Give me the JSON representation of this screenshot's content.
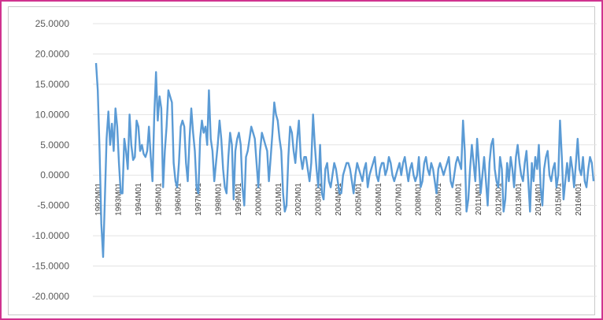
{
  "colors": {
    "frame": "#d0338f",
    "border": "#c9c9c9",
    "line": "#5b9bd5",
    "grid": "#e3e3e3",
    "text": "#595959"
  },
  "chart_data": {
    "type": "line",
    "title": "",
    "xlabel": "",
    "ylabel": "",
    "ylim": [
      -20,
      25
    ],
    "grid": true,
    "y_ticks": [
      "25.0000",
      "20.0000",
      "15.0000",
      "10.0000",
      "5.0000",
      "0.0000",
      "-5.0000",
      "-10.0000",
      "-15.0000",
      "-20.0000"
    ],
    "y_tick_values": [
      25,
      20,
      15,
      10,
      5,
      0,
      -5,
      -10,
      -15,
      -20
    ],
    "x_tick_labels": [
      "1992M01",
      "1993M01",
      "1994M01",
      "1995M01",
      "1996M01",
      "1997M01",
      "1998M01",
      "1999M01",
      "2000M01",
      "2001M01",
      "2002M01",
      "2003M01",
      "2004M01",
      "2005M01",
      "2006M01",
      "2007M01",
      "2008M01",
      "2009M01",
      "2010M01",
      "2011M01",
      "2012M01",
      "2013M01",
      "2014M01",
      "2015M01",
      "2016M01"
    ],
    "series": [
      {
        "values": [
          18.5,
          14,
          4,
          -8,
          -13.5,
          -4,
          6,
          10.5,
          5,
          8.5,
          4,
          11,
          8,
          2,
          -3,
          -3,
          6,
          4,
          1,
          10,
          5,
          2.5,
          3,
          9,
          8,
          4,
          5,
          3.5,
          3,
          4,
          8,
          3,
          -1,
          10,
          17,
          9,
          13,
          11,
          -2,
          4,
          8,
          14,
          13,
          12,
          2,
          -1,
          -2,
          2,
          8,
          9,
          8,
          2,
          -1,
          6,
          11,
          7,
          4,
          -2,
          -3,
          6,
          9,
          7,
          8,
          5,
          14,
          6,
          4,
          -1,
          2,
          5,
          9,
          6,
          1,
          -2,
          -3,
          3,
          7,
          5,
          -4,
          4,
          6,
          7,
          5,
          -2,
          -5,
          3,
          4,
          6,
          8,
          7,
          6,
          2,
          -2,
          4,
          7,
          6,
          5,
          4,
          -1,
          3,
          7,
          12,
          10,
          9,
          6,
          4,
          -3,
          -6,
          -5,
          3,
          8,
          7,
          4,
          2,
          6,
          9,
          3,
          1,
          3,
          3,
          1,
          -1,
          2,
          10,
          5,
          1,
          -2,
          5,
          -3,
          -4,
          1,
          2,
          -1,
          -2,
          0,
          2,
          1,
          -1,
          -3,
          -3,
          0,
          1,
          2,
          2,
          1,
          -1,
          -3,
          0,
          2,
          1,
          0,
          -1,
          1,
          2,
          -2,
          0,
          1,
          2,
          3,
          0,
          -1,
          1,
          2,
          2,
          0,
          1,
          3,
          2,
          0,
          -1,
          0,
          1,
          2,
          0,
          2,
          3,
          1,
          -1,
          1,
          2,
          0,
          -1,
          0,
          3,
          -2,
          -1,
          2,
          3,
          1,
          0,
          2,
          1,
          -1,
          -3,
          1,
          2,
          1,
          0,
          1,
          2,
          3,
          -1,
          -2,
          0,
          2,
          3,
          2,
          1,
          9,
          4,
          -6,
          -4,
          1,
          5,
          2,
          -1,
          6,
          2,
          -3,
          0,
          3,
          -1,
          -5,
          2,
          5,
          6,
          1,
          -1,
          -2,
          3,
          1,
          -6,
          -4,
          2,
          -1,
          3,
          1,
          -2,
          3,
          5,
          2,
          0,
          -1,
          2,
          4,
          -1,
          -6,
          2,
          -1,
          3,
          1,
          5,
          -2,
          -5,
          1,
          3,
          4,
          0,
          -1,
          1,
          2,
          -2,
          0,
          9,
          3,
          -4,
          -1,
          2,
          -1,
          3,
          1,
          -2,
          2,
          6,
          1,
          0,
          3,
          -1,
          -2,
          1,
          3,
          2,
          -1
        ]
      }
    ]
  }
}
